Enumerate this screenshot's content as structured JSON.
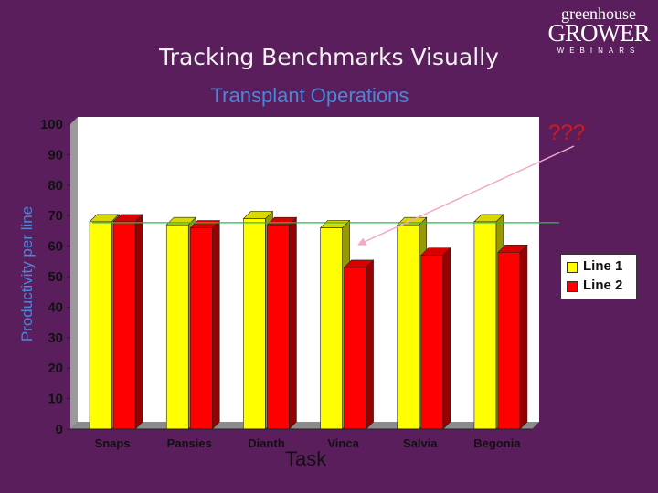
{
  "slide": {
    "title": "Tracking Benchmarks Visually",
    "annotation": "???",
    "brand": {
      "top": "greenhouse",
      "middle": "GROWER",
      "bottom": "WEBINARS"
    },
    "background": "#5a1e5c"
  },
  "chart_data": {
    "type": "bar",
    "title": "Transplant Operations",
    "xlabel": "Task",
    "ylabel": "Productivity per line",
    "ylim": [
      0,
      100
    ],
    "yticks": [
      0,
      10,
      20,
      30,
      40,
      50,
      60,
      70,
      80,
      90,
      100
    ],
    "categories": [
      "Snaps",
      "Pansies",
      "Dianth",
      "Vinca",
      "Salvia",
      "Begonia"
    ],
    "series": [
      {
        "name": "Line 1",
        "color": "#ffff00",
        "values": [
          68,
          67,
          69,
          66,
          67,
          68
        ]
      },
      {
        "name": "Line 2",
        "color": "#ff0000",
        "values": [
          68,
          66,
          67,
          53,
          57,
          58
        ]
      }
    ],
    "benchmark": {
      "value": 66.5,
      "color": "#2fb84a"
    },
    "legend_position": "right"
  }
}
